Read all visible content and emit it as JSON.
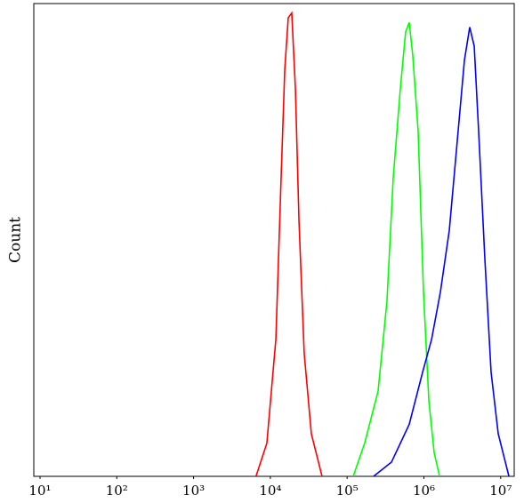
{
  "chart_data": {
    "type": "line",
    "ylabel": "Count",
    "xlog": true,
    "xlim": [
      8.3,
      15000000
    ],
    "ylim": [
      0,
      100
    ],
    "xticks": [
      {
        "value": 10,
        "label": "10¹"
      },
      {
        "value": 100,
        "label": "10²"
      },
      {
        "value": 1000,
        "label": "10³"
      },
      {
        "value": 10000,
        "label": "10⁴"
      },
      {
        "value": 100000,
        "label": "10⁵"
      },
      {
        "value": 1000000,
        "label": "10⁶"
      },
      {
        "value": 10000000,
        "label": "10⁷"
      }
    ],
    "series": [
      {
        "color": "#ff0000",
        "x": [
          6500,
          9000,
          11800,
          13800,
          15400,
          17100,
          19000,
          21200,
          23600,
          27600,
          34200,
          47100
        ],
        "values": [
          0,
          7,
          29,
          63,
          86,
          97,
          98,
          82,
          54,
          26,
          9,
          0
        ]
      },
      {
        "color": "#00ff00",
        "x": [
          120000,
          169000,
          253000,
          330000,
          398000,
          493000,
          578000,
          644000,
          716000,
          841000,
          987000,
          1160000,
          1360000,
          1600000
        ],
        "values": [
          0,
          7,
          18,
          37,
          63,
          82,
          94,
          96,
          89,
          73,
          39,
          16,
          5,
          0
        ]
      },
      {
        "color": "#0000ff",
        "x": [
          221000,
          378000,
          644000,
          961000,
          1260000,
          1640000,
          2140000,
          2790000,
          3370000,
          3950000,
          4520000,
          5160000,
          6220000,
          7500000,
          9290000,
          12800000
        ],
        "values": [
          0,
          3,
          11,
          22,
          29,
          39,
          52,
          73,
          88,
          95,
          91,
          73,
          46,
          22,
          9,
          0
        ]
      }
    ]
  }
}
